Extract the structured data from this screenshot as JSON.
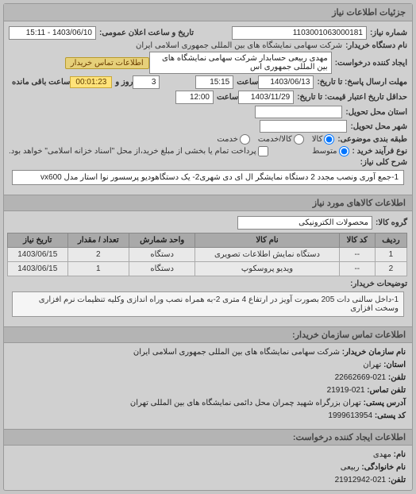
{
  "panel": {
    "title": "جزئیات اطلاعات نیاز"
  },
  "fields": {
    "req_no_lbl": "شماره نیاز:",
    "req_no": "1103001063000181",
    "announce_lbl": "تاریخ و ساعت اعلان عمومی:",
    "announce_val": "1403/06/10 - 15:11",
    "buyer_device_lbl": "نام دستگاه خریدار:",
    "buyer_device_val": "شرکت سهامی نمایشگاه های بین المللی جمهوری اسلامی ایران",
    "requester_lbl": "ایجاد کننده درخواست:",
    "requester_val": "مهدی  ربیعی حسابدار شرکت سهامی نمایشگاه های بین المللی جمهوری اس",
    "contact_btn": "اطلاعات تماس خریدار",
    "deadline_from_lbl": "مهلت ارسال پاسخ: تا تاریخ:",
    "deadline_date": "1403/06/13",
    "deadline_time_lbl": "ساعت",
    "deadline_time": "15:15",
    "remain_lbl": "ساعت باقی مانده",
    "remain_days": "3",
    "remain_days_lbl": "روز و",
    "remain_time": "00:01:23",
    "credit_valid_lbl": "حداقل تاریخ اعتبار قیمت: تا تاریخ:",
    "credit_date": "1403/11/29",
    "credit_time": "12:00",
    "delivery_state_lbl": "استان محل تحویل:",
    "delivery_city_lbl": "شهر محل تحویل:",
    "must_type_lbl": "طبقه بندی موضوعی:",
    "opt_kala": "کالا",
    "opt_kala_service": "کالا/خدمت",
    "opt_service": "خدمت",
    "priority_lbl": "نوع فرآیند خرید :",
    "opt_low": "متوسط",
    "pay_note": "پرداخت تمام یا بخشی از مبلغ خرید،از محل \"اسناد خزانه اسلامی\" خواهد بود.",
    "general_title_lbl": "شرح کلی نیاز:",
    "general_title_val": "1-جمع آوری ونصب مجدد 2 دستگاه نمایشگر ال ای دی شهری2- یک دستگاهودیو پرسسور نوا استار مدل vx600",
    "goods_header": "اطلاعات کالاهای مورد نیاز",
    "group_lbl": "گروه کالا:",
    "group_val": "محصولات الکترونیکی",
    "buyer_note_lbl": "توضیحات خریدار:",
    "buyer_note_val": "1-داخل سالنی دات 205 بصورت آویز در ارتفاع 4 متری 2-به همراه نصب وراه اندازی وکلیه تنظیمات نرم افزاری وسخت افزاری",
    "contact_header": "اطلاعات تماس سازمان خریدار:",
    "org_name_lbl": "نام سازمان خریدار:",
    "org_name_val": "شرکت سهامی نمایشگاه های بین المللی جمهوری اسلامی ایران",
    "prov_lbl": "استان:",
    "prov_val": "تهران",
    "tel_lbl": "تلفن:",
    "tel_val": "021-22662669",
    "fax_lbl": "تلفن تماس:",
    "fax_val": "021-21919",
    "addr_lbl": "آدرس پستی:",
    "addr_val": "تهران بزرگراه شهید چمران محل دائمی نمایشگاه های بین المللی تهران",
    "zip_lbl": "کد پستی:",
    "zip_val": "1999613954",
    "creator_header": "اطلاعات ایجاد کننده درخواست:",
    "creator_name_lbl": "نام:",
    "creator_name_val": "مهدی",
    "creator_family_lbl": "نام خانوادگی:",
    "creator_family_val": "ربیعی",
    "creator_tel_lbl": "تلفن:",
    "creator_tel_val": "021-21912942"
  },
  "table": {
    "headers": {
      "row": "ردیف",
      "code": "کد کالا",
      "name": "نام کالا",
      "unit": "واحد شمارش",
      "qty": "تعداد / مقدار",
      "date": "تاریخ نیاز"
    },
    "rows": [
      {
        "row": "1",
        "code": "--",
        "name": "دستگاه نمایش اطلاعات تصویری",
        "unit": "دستگاه",
        "qty": "2",
        "date": "1403/06/15"
      },
      {
        "row": "2",
        "code": "--",
        "name": "ویدیو پروسکوپ",
        "unit": "دستگاه",
        "qty": "1",
        "date": "1403/06/15"
      }
    ]
  },
  "colors": {
    "panel_bg": "#d0d0d0",
    "header_bg": "#b9b9b9",
    "warn_bg": "#e6d07a",
    "timer_bg": "#ffe37a"
  }
}
